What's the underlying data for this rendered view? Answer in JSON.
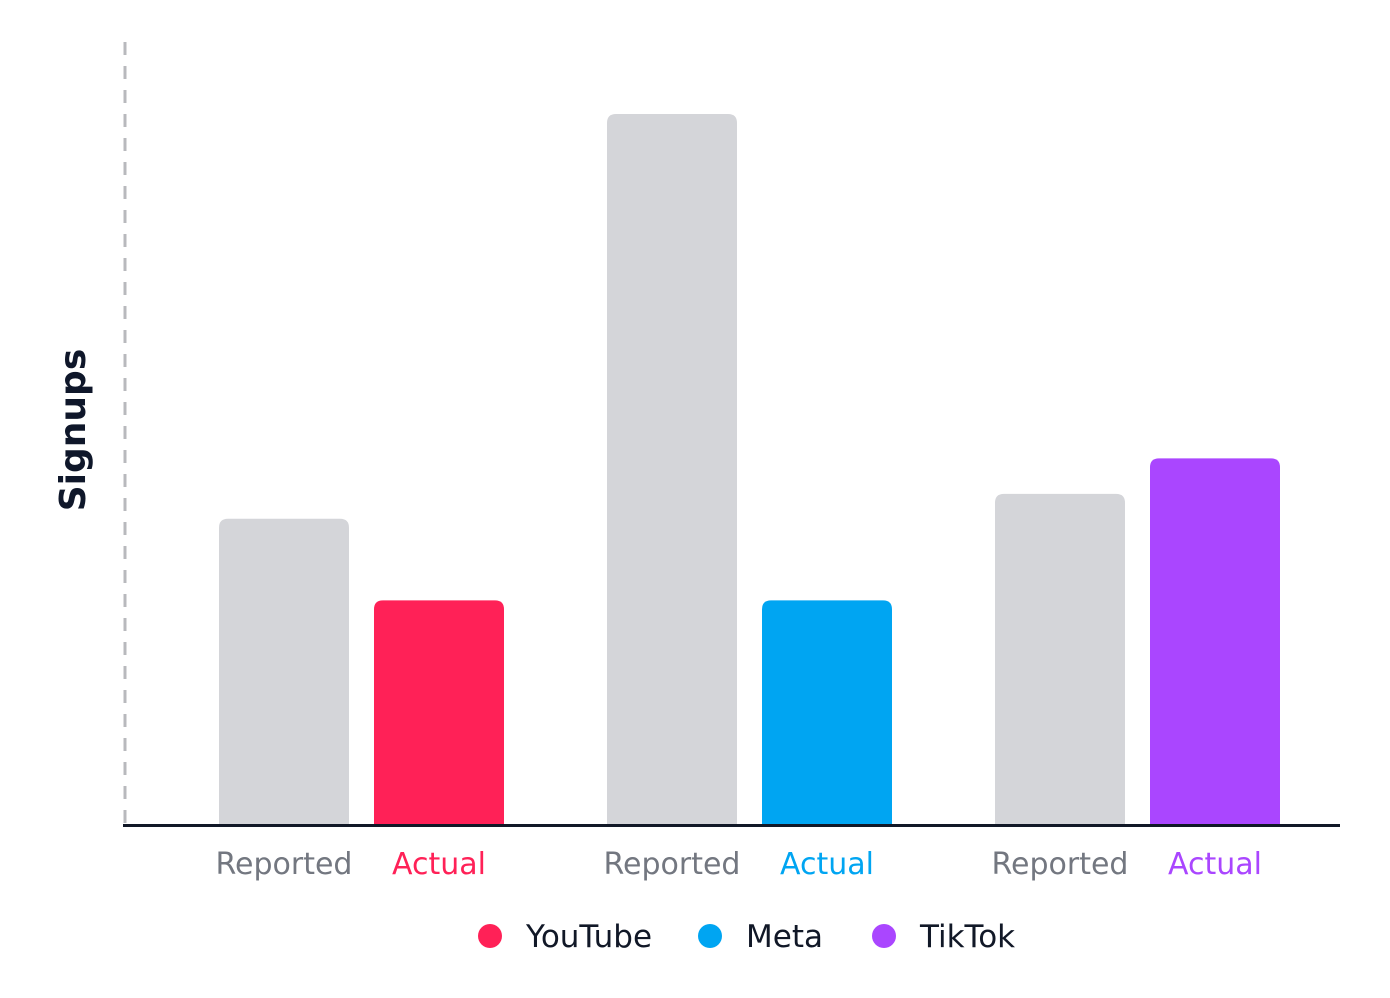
{
  "chart_data": {
    "type": "bar",
    "title": "",
    "xlabel": "",
    "ylabel": "Signups",
    "ylim": [
      0,
      100
    ],
    "grid": false,
    "legend_position": "bottom",
    "groups": [
      {
        "name": "YouTube",
        "color": "#ff2157",
        "bars": [
          {
            "label": "Reported",
            "value": 43,
            "color": "#d4d5d9",
            "label_color": "#737780"
          },
          {
            "label": "Actual",
            "value": 31.5,
            "color": "#ff2157",
            "label_color": "#ff2157"
          }
        ]
      },
      {
        "name": "Meta",
        "color": "#00a5f2",
        "bars": [
          {
            "label": "Reported",
            "value": 100,
            "color": "#d4d5d9",
            "label_color": "#737780"
          },
          {
            "label": "Actual",
            "value": 31.5,
            "color": "#00a5f2",
            "label_color": "#00a5f2"
          }
        ]
      },
      {
        "name": "TikTok",
        "color": "#aa46ff",
        "bars": [
          {
            "label": "Reported",
            "value": 46.5,
            "color": "#d4d5d9",
            "label_color": "#737780"
          },
          {
            "label": "Actual",
            "value": 51.5,
            "color": "#aa46ff",
            "label_color": "#aa46ff"
          }
        ]
      }
    ],
    "legend": [
      {
        "label": "YouTube",
        "color": "#ff2157"
      },
      {
        "label": "Meta",
        "color": "#00a5f2"
      },
      {
        "label": "TikTok",
        "color": "#aa46ff"
      }
    ]
  }
}
